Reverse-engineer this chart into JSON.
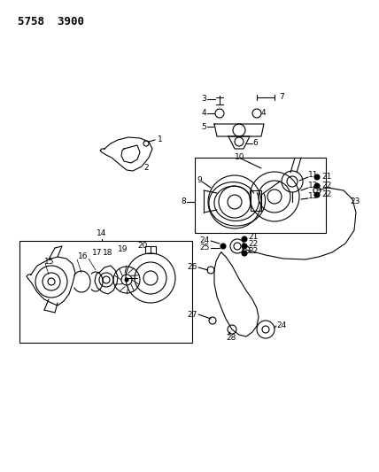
{
  "title": "5758  3900",
  "background_color": "#ffffff",
  "line_color": "#000000",
  "fig_width": 4.28,
  "fig_height": 5.33,
  "dpi": 100,
  "title_fontsize": 9,
  "label_fontsize": 6.5
}
